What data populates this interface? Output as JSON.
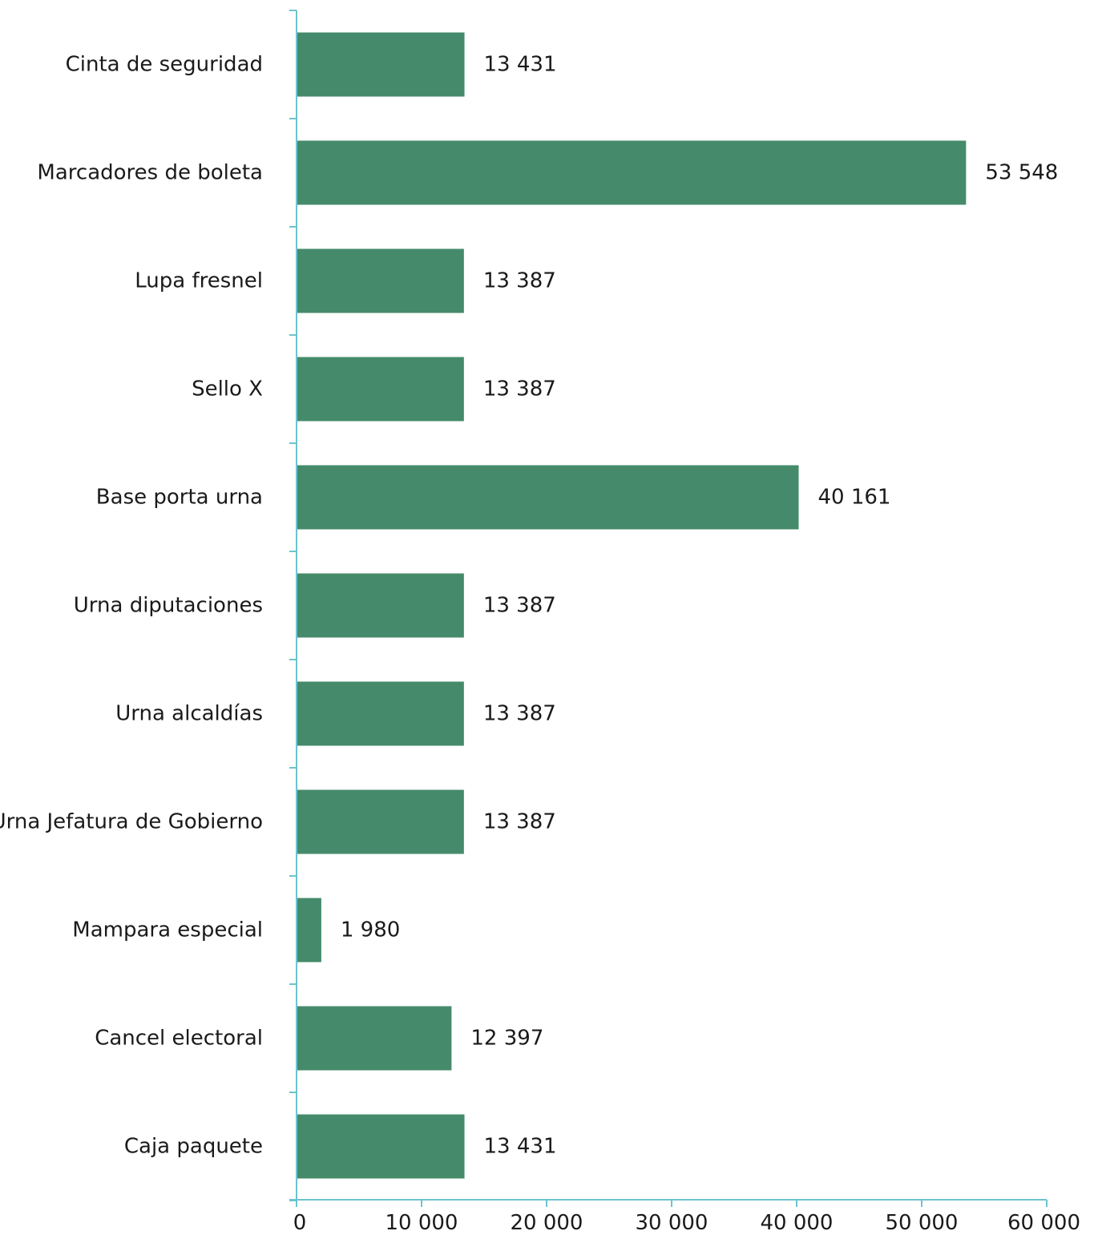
{
  "chart_data": {
    "type": "bar",
    "orientation": "horizontal",
    "categories": [
      "Cinta de seguridad",
      "Marcadores de boleta",
      "Lupa fresnel",
      "Sello X",
      "Base porta urna",
      "Urna diputaciones",
      "Urna alcaldías",
      "Urna Jefatura de Gobierno",
      "Mampara especial",
      "Cancel electoral",
      "Caja paquete"
    ],
    "values": [
      13431,
      53548,
      13387,
      13387,
      40161,
      13387,
      13387,
      13387,
      1980,
      12397,
      13431
    ],
    "value_labels": [
      "13 431",
      "53 548",
      "13 387",
      "13 387",
      "40 161",
      "13 387",
      "13 387",
      "13 387",
      "1 980",
      "12 397",
      "13 431"
    ],
    "xlim": [
      0,
      60000
    ],
    "x_ticks": [
      0,
      10000,
      20000,
      30000,
      40000,
      50000,
      60000
    ],
    "x_tick_labels": [
      "0",
      "10 000",
      "20 000",
      "30 000",
      "40 000",
      "50 000",
      "60 000"
    ],
    "title": "",
    "xlabel": "",
    "ylabel": "",
    "grid": false,
    "legend": "none",
    "colors": {
      "bar": "#458b6b",
      "axis": "#6cc4cf",
      "text": "#1a1a1a"
    }
  }
}
